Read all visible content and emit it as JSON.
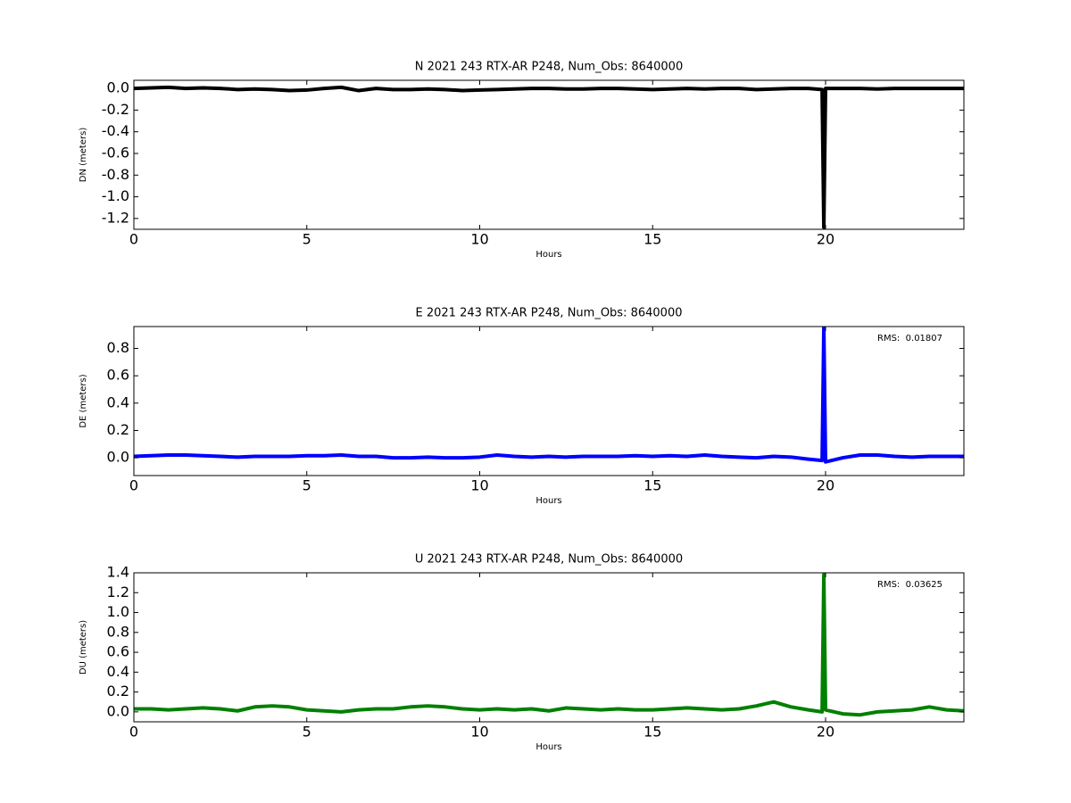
{
  "chart_data": [
    {
      "type": "line",
      "title": "N 2021 243 RTX-AR  P248, Num_Obs: 8640000",
      "xlabel": "Hours",
      "ylabel": "DN (meters)",
      "x": [
        0,
        0.5,
        1,
        1.5,
        2,
        2.5,
        3,
        3.5,
        4,
        4.5,
        5,
        5.5,
        6,
        6.5,
        7,
        7.5,
        8,
        8.5,
        9,
        9.5,
        10,
        10.5,
        11,
        11.5,
        12,
        12.5,
        13,
        13.5,
        14,
        14.5,
        15,
        15.5,
        16,
        16.5,
        17,
        17.5,
        18,
        18.5,
        19,
        19.5,
        19.9,
        19.95,
        20,
        20.5,
        21,
        21.5,
        22,
        22.5,
        23,
        23.5,
        24
      ],
      "series": [
        {
          "color": "#000000",
          "values": [
            0,
            0.005,
            0.01,
            0,
            0.005,
            0,
            -0.01,
            -0.005,
            -0.01,
            -0.02,
            -0.015,
            0,
            0.01,
            -0.02,
            0,
            -0.01,
            -0.01,
            -0.005,
            -0.01,
            -0.02,
            -0.015,
            -0.01,
            -0.005,
            0,
            0,
            -0.005,
            -0.005,
            0,
            0,
            -0.005,
            -0.01,
            -0.005,
            0,
            -0.005,
            0,
            0,
            -0.01,
            -0.005,
            0,
            0,
            -0.01,
            -1.28,
            0,
            0,
            0,
            -0.005,
            0,
            0,
            0,
            0,
            0
          ]
        }
      ],
      "xlim": [
        0,
        24
      ],
      "ylim": [
        -1.3,
        0.075
      ],
      "xticks": [
        0,
        5,
        10,
        15,
        20
      ],
      "yticks": [
        {
          "value": 0,
          "label": "0.0"
        },
        -0.2,
        -0.4,
        -0.6,
        -0.8,
        {
          "value": -1,
          "label": "-1.0"
        },
        -1.2
      ]
    },
    {
      "type": "line",
      "title": "E 2021 243 RTX-AR  P248, Num_Obs: 8640000",
      "xlabel": "Hours",
      "ylabel": "DE (meters)",
      "x": [
        0,
        0.5,
        1,
        1.5,
        2,
        2.5,
        3,
        3.5,
        4,
        4.5,
        5,
        5.5,
        6,
        6.5,
        7,
        7.5,
        8,
        8.5,
        9,
        9.5,
        10,
        10.5,
        11,
        11.5,
        12,
        12.5,
        13,
        13.5,
        14,
        14.5,
        15,
        15.5,
        16,
        16.5,
        17,
        17.5,
        18,
        18.5,
        19,
        19.5,
        19.9,
        19.95,
        20,
        20.5,
        21,
        21.5,
        22,
        22.5,
        23,
        23.5,
        24
      ],
      "series": [
        {
          "color": "#0000ff",
          "values": [
            0.01,
            0.015,
            0.02,
            0.02,
            0.015,
            0.01,
            0.005,
            0.01,
            0.01,
            0.01,
            0.015,
            0.015,
            0.02,
            0.01,
            0.01,
            0,
            0,
            0.005,
            0,
            0,
            0.005,
            0.02,
            0.01,
            0.005,
            0.01,
            0.005,
            0.01,
            0.01,
            0.01,
            0.015,
            0.01,
            0.015,
            0.01,
            0.02,
            0.01,
            0.005,
            0,
            0.01,
            0.005,
            -0.01,
            -0.02,
            0.95,
            -0.03,
            0,
            0.02,
            0.02,
            0.01,
            0.005,
            0.01,
            0.01,
            0.01
          ]
        }
      ],
      "xlim": [
        0,
        24
      ],
      "ylim": [
        -0.13,
        0.96
      ],
      "xticks": [
        0,
        5,
        10,
        15,
        20
      ],
      "yticks": [
        {
          "value": 0,
          "label": "0.0"
        },
        0.2,
        0.4,
        0.6,
        0.8
      ],
      "annotations": [
        {
          "text": "RMS:  0.01807",
          "color": "#0000ff"
        }
      ]
    },
    {
      "type": "line",
      "title": "U 2021 243 RTX-AR  P248, Num_Obs: 8640000",
      "xlabel": "Hours",
      "ylabel": "DU (meters)",
      "x": [
        0,
        0.5,
        1,
        1.5,
        2,
        2.5,
        3,
        3.5,
        4,
        4.5,
        5,
        5.5,
        6,
        6.5,
        7,
        7.5,
        8,
        8.5,
        9,
        9.5,
        10,
        10.5,
        11,
        11.5,
        12,
        12.5,
        13,
        13.5,
        14,
        14.5,
        15,
        15.5,
        16,
        16.5,
        17,
        17.5,
        18,
        18.5,
        19,
        19.5,
        19.9,
        19.95,
        20,
        20.5,
        21,
        21.5,
        22,
        22.5,
        23,
        23.5,
        24
      ],
      "series": [
        {
          "color": "#008000",
          "values": [
            0.03,
            0.03,
            0.02,
            0.03,
            0.04,
            0.03,
            0.01,
            0.05,
            0.06,
            0.05,
            0.02,
            0.01,
            0,
            0.02,
            0.03,
            0.03,
            0.05,
            0.06,
            0.05,
            0.03,
            0.02,
            0.03,
            0.02,
            0.03,
            0.01,
            0.04,
            0.03,
            0.02,
            0.03,
            0.02,
            0.02,
            0.03,
            0.04,
            0.03,
            0.02,
            0.03,
            0.06,
            0.1,
            0.05,
            0.02,
            0,
            1.38,
            0.02,
            -0.02,
            -0.03,
            0,
            0.01,
            0.02,
            0.05,
            0.02,
            0.01
          ]
        }
      ],
      "xlim": [
        0,
        24
      ],
      "ylim": [
        -0.1,
        1.4
      ],
      "xticks": [
        0,
        5,
        10,
        15,
        20
      ],
      "yticks": [
        {
          "value": 0,
          "label": "0.0"
        },
        0.2,
        0.4,
        0.6,
        0.8,
        {
          "value": 1,
          "label": "1.0"
        },
        1.2,
        1.4
      ],
      "annotations": [
        {
          "text": "RMS:  0.03625",
          "color": "#0000ff"
        }
      ]
    }
  ]
}
